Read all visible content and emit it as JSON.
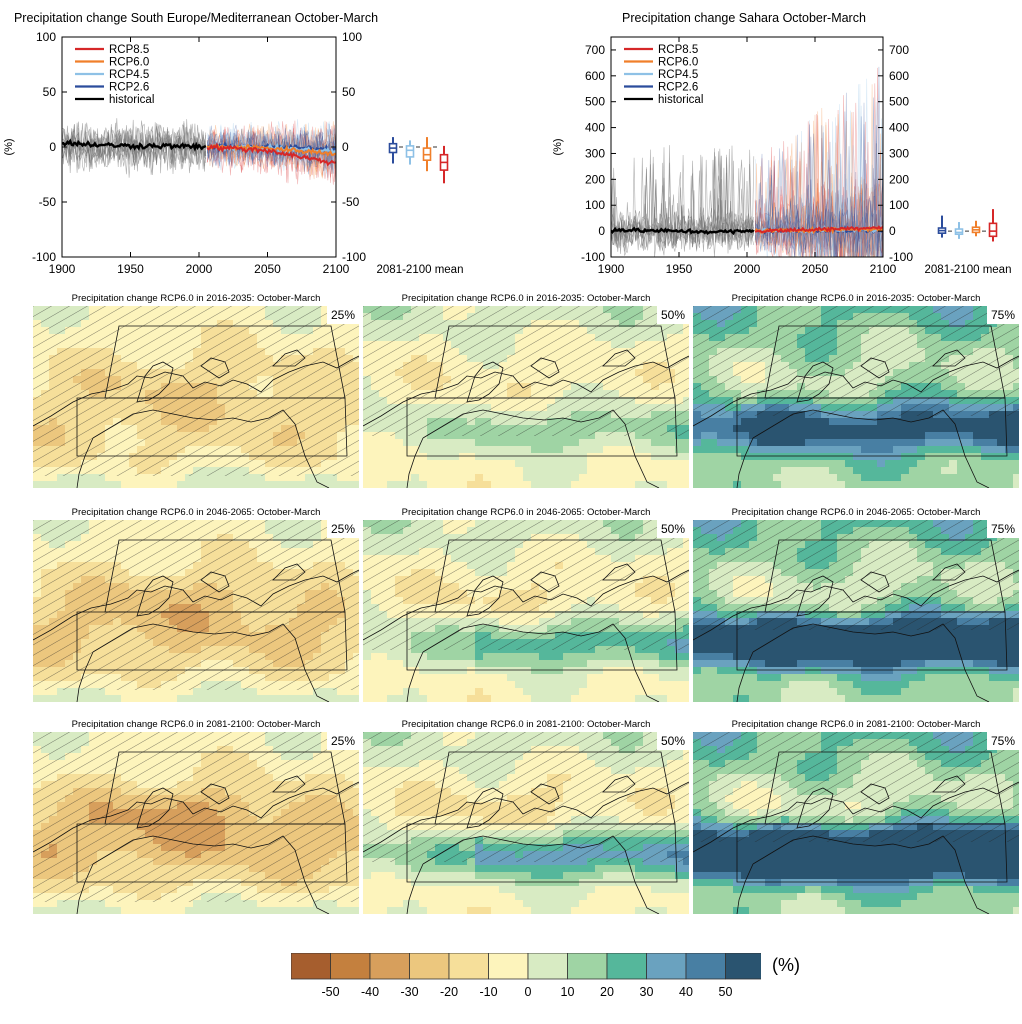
{
  "time_series": [
    {
      "title": "Precipitation change South Europe/Mediterranean October-March",
      "ylabel": "(%)",
      "xlim": [
        1900,
        2100
      ],
      "ylim": [
        -100,
        100
      ],
      "xticks": [
        "1900",
        "1950",
        "2000",
        "2050",
        "2100"
      ],
      "yticks": [
        "100",
        "50",
        "0",
        "-50",
        "-100"
      ],
      "box_label": "2081-2100 mean"
    },
    {
      "title": "Precipitation change Sahara October-March",
      "ylabel": "(%)",
      "xlim": [
        1900,
        2100
      ],
      "ylim": [
        -100,
        750
      ],
      "xticks": [
        "1900",
        "1950",
        "2000",
        "2050",
        "2100"
      ],
      "yticks": [
        "700",
        "600",
        "500",
        "400",
        "300",
        "200",
        "100",
        "0",
        "-100"
      ],
      "box_label": "2081-2100 mean"
    }
  ],
  "legend": [
    {
      "name": "RCP8.5",
      "color": "#d62728"
    },
    {
      "name": "RCP6.0",
      "color": "#f07f2a"
    },
    {
      "name": "RCP4.5",
      "color": "#8ec1e6"
    },
    {
      "name": "RCP2.6",
      "color": "#2b4c9c"
    },
    {
      "name": "historical",
      "color": "#000000"
    }
  ],
  "chart_data": [
    {
      "type": "line",
      "title": "Precipitation change South Europe/Mediterranean October-March",
      "ylabel": "(%)",
      "xlim": [
        1900,
        2100
      ],
      "ylim": [
        -100,
        100
      ],
      "series": [
        {
          "name": "historical",
          "x": [
            1900,
            1925,
            1950,
            1975,
            2005
          ],
          "values": [
            4,
            2,
            1,
            1,
            0
          ]
        },
        {
          "name": "RCP2.6",
          "x": [
            2006,
            2050,
            2100
          ],
          "values": [
            0,
            0,
            -2
          ]
        },
        {
          "name": "RCP4.5",
          "x": [
            2006,
            2050,
            2100
          ],
          "values": [
            0,
            -1,
            -4
          ]
        },
        {
          "name": "RCP6.0",
          "x": [
            2006,
            2050,
            2100
          ],
          "values": [
            0,
            -1,
            -6
          ]
        },
        {
          "name": "RCP8.5",
          "x": [
            2006,
            2050,
            2100
          ],
          "values": [
            0,
            -3,
            -15
          ]
        }
      ],
      "boxplots_2081_2100_mean": [
        {
          "name": "RCP2.6",
          "min": -15,
          "q1": -5,
          "median": -1,
          "q3": 3,
          "max": 9
        },
        {
          "name": "RCP4.5",
          "min": -16,
          "q1": -9,
          "median": -3,
          "q3": 1,
          "max": 6
        },
        {
          "name": "RCP6.0",
          "min": -22,
          "q1": -12,
          "median": -7,
          "q3": -1,
          "max": 9
        },
        {
          "name": "RCP8.5",
          "min": -33,
          "q1": -21,
          "median": -14,
          "q3": -7,
          "max": 1
        }
      ]
    },
    {
      "type": "line",
      "title": "Precipitation change Sahara October-March",
      "ylabel": "(%)",
      "xlim": [
        1900,
        2100
      ],
      "ylim": [
        -100,
        750
      ],
      "series": [
        {
          "name": "historical",
          "x": [
            1900,
            1925,
            1950,
            1975,
            2005
          ],
          "values": [
            5,
            2,
            0,
            -3,
            0
          ]
        },
        {
          "name": "RCP2.6",
          "x": [
            2006,
            2050,
            2100
          ],
          "values": [
            0,
            3,
            2
          ]
        },
        {
          "name": "RCP4.5",
          "x": [
            2006,
            2050,
            2100
          ],
          "values": [
            0,
            4,
            5
          ]
        },
        {
          "name": "RCP6.0",
          "x": [
            2006,
            2050,
            2100
          ],
          "values": [
            0,
            5,
            8
          ]
        },
        {
          "name": "RCP8.5",
          "x": [
            2006,
            2050,
            2100
          ],
          "values": [
            0,
            6,
            15
          ]
        }
      ],
      "boxplots_2081_2100_mean": [
        {
          "name": "RCP2.6",
          "min": -25,
          "q1": -8,
          "median": 2,
          "q3": 12,
          "max": 60
        },
        {
          "name": "RCP4.5",
          "min": -30,
          "q1": -12,
          "median": -5,
          "q3": 8,
          "max": 35
        },
        {
          "name": "RCP6.0",
          "min": -20,
          "q1": -5,
          "median": 5,
          "q3": 15,
          "max": 40
        },
        {
          "name": "RCP8.5",
          "min": -40,
          "q1": -20,
          "median": 0,
          "q3": 30,
          "max": 85
        }
      ]
    },
    {
      "type": "heatmap",
      "variable": "Precipitation change RCP6.0, October-March (%)",
      "periods": [
        "2016-2035",
        "2046-2065",
        "2081-2100"
      ],
      "percentiles": [
        "25%",
        "50%",
        "75%"
      ],
      "colorbar_ticks": [
        -50,
        -40,
        -30,
        -20,
        -10,
        0,
        10,
        20,
        30,
        40,
        50
      ]
    }
  ],
  "map_panels": [
    {
      "title": "Precipitation change RCP6.0 in 2016-2035: October-March",
      "pct": "25%"
    },
    {
      "title": "Precipitation change RCP6.0 in 2016-2035: October-March",
      "pct": "50%"
    },
    {
      "title": "Precipitation change RCP6.0 in 2016-2035: October-March",
      "pct": "75%"
    },
    {
      "title": "Precipitation change RCP6.0 in 2046-2065: October-March",
      "pct": "25%"
    },
    {
      "title": "Precipitation change RCP6.0 in 2046-2065: October-March",
      "pct": "50%"
    },
    {
      "title": "Precipitation change RCP6.0 in 2046-2065: October-March",
      "pct": "75%"
    },
    {
      "title": "Precipitation change RCP6.0 in 2081-2100: October-March",
      "pct": "25%"
    },
    {
      "title": "Precipitation change RCP6.0 in 2081-2100: October-March",
      "pct": "50%"
    },
    {
      "title": "Precipitation change RCP6.0 in 2081-2100: October-March",
      "pct": "75%"
    }
  ],
  "colorbar": {
    "unit": "(%)",
    "tick_labels": [
      "-50",
      "-40",
      "-30",
      "-20",
      "-10",
      "0",
      "10",
      "20",
      "30",
      "40",
      "50"
    ],
    "colors": [
      "#a65e2e",
      "#c4803e",
      "#d79f5c",
      "#ecc77e",
      "#f6df9a",
      "#fdf4bc",
      "#d8ebc3",
      "#9fd4a4",
      "#55b79b",
      "#6aa2bf",
      "#487fa3",
      "#2a5470"
    ]
  }
}
